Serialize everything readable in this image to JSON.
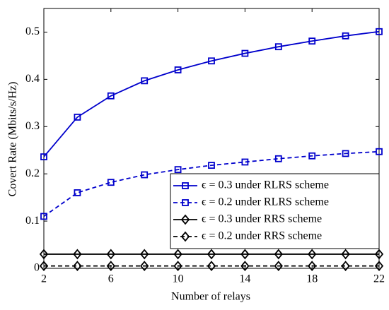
{
  "chart_data": {
    "type": "line",
    "x_label": "Number of relays",
    "y_label": "Covert Rate (Mbits/s/Hz)",
    "x": [
      2,
      4,
      6,
      8,
      10,
      12,
      14,
      16,
      18,
      20,
      22
    ],
    "series": [
      {
        "name": "ϵ = 0.3 under RLRS scheme",
        "color": "#0000cc",
        "dash": false,
        "marker": "square",
        "values": [
          0.236,
          0.32,
          0.365,
          0.397,
          0.42,
          0.439,
          0.455,
          0.469,
          0.481,
          0.492,
          0.501
        ]
      },
      {
        "name": "ϵ = 0.2 under RLRS scheme",
        "color": "#0000cc",
        "dash": true,
        "marker": "square",
        "values": [
          0.11,
          0.16,
          0.182,
          0.198,
          0.209,
          0.218,
          0.225,
          0.232,
          0.238,
          0.243,
          0.247
        ]
      },
      {
        "name": "ϵ = 0.3 under RRS scheme",
        "color": "#000000",
        "dash": false,
        "marker": "diamond",
        "values": [
          0.03,
          0.03,
          0.03,
          0.03,
          0.03,
          0.03,
          0.03,
          0.03,
          0.03,
          0.03,
          0.03
        ]
      },
      {
        "name": "ϵ = 0.2 under RRS scheme",
        "color": "#000000",
        "dash": true,
        "marker": "diamond",
        "values": [
          0.005,
          0.005,
          0.005,
          0.005,
          0.005,
          0.005,
          0.005,
          0.005,
          0.005,
          0.005,
          0.005
        ]
      }
    ],
    "xlim": [
      2,
      22
    ],
    "xticks": [
      2,
      6,
      10,
      14,
      18,
      22
    ],
    "ylim": [
      0,
      0.55
    ],
    "yticks": [
      0,
      0.1,
      0.2,
      0.3,
      0.4,
      0.5
    ],
    "grid": false,
    "legend": "lower right"
  }
}
